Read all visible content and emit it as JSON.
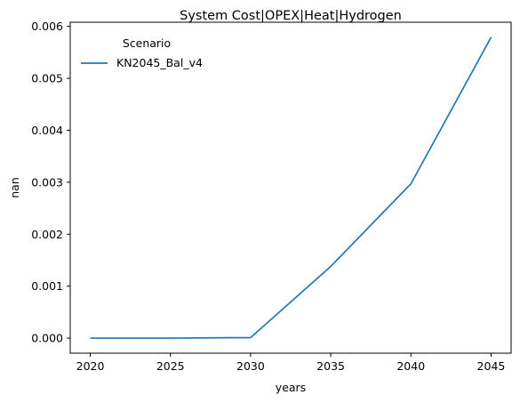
{
  "chart_data": {
    "type": "line",
    "title": "System Cost|OPEX|Heat|Hydrogen",
    "xlabel": "years",
    "ylabel": "nan",
    "x": [
      2020,
      2025,
      2030,
      2035,
      2040,
      2045
    ],
    "xticks": [
      2020,
      2025,
      2030,
      2035,
      2040,
      2045
    ],
    "xlim": [
      2018.75,
      2046.25
    ],
    "yticks": [
      0.0,
      0.001,
      0.002,
      0.003,
      0.004,
      0.005,
      0.006
    ],
    "ytick_labels": [
      "0.000",
      "0.001",
      "0.002",
      "0.003",
      "0.004",
      "0.005",
      "0.006"
    ],
    "ylim": [
      -0.00029,
      0.00608
    ],
    "grid": false,
    "legend": {
      "title": "Scenario",
      "placement": "top-left"
    },
    "series": [
      {
        "name": "KN2045_Bal_v4",
        "color": "#1f77b4",
        "values": [
          0.0,
          0.0,
          1e-05,
          0.00138,
          0.00297,
          0.00579
        ]
      }
    ]
  }
}
